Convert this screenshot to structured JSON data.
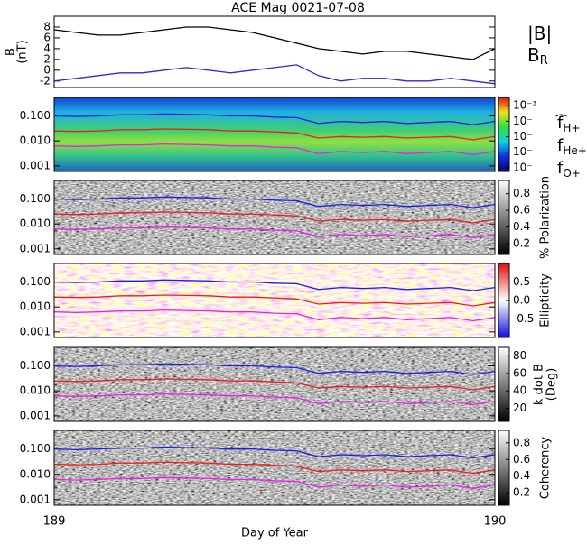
{
  "chart_data": [
    {
      "type": "line",
      "title": "ACE Mag 0021-07-08",
      "ylabel": [
        "B",
        "(nT)"
      ],
      "x": [
        189,
        189.05,
        189.1,
        189.15,
        189.2,
        189.25,
        189.3,
        189.35,
        189.4,
        189.45,
        189.5,
        189.55,
        189.6,
        189.65,
        189.7,
        189.75,
        189.8,
        189.85,
        189.9,
        189.95,
        190
      ],
      "series": [
        {
          "name": "|B|",
          "color": "#000000",
          "values": [
            7.5,
            7,
            6.5,
            6.5,
            7,
            7.5,
            8,
            8,
            7.5,
            7,
            6,
            5,
            4,
            3.5,
            3,
            3.5,
            3.5,
            3,
            2.5,
            2,
            4
          ]
        },
        {
          "name": "B_R",
          "color": "#2a2ad8",
          "values": [
            -2,
            -1.5,
            -1,
            -0.5,
            -0.5,
            0,
            0.5,
            0,
            -0.5,
            0,
            0.5,
            1,
            -1,
            -2,
            -1.5,
            -1.5,
            -2,
            -2,
            -1.5,
            -2,
            -2.5
          ]
        }
      ],
      "ylim": [
        -3.2,
        10
      ],
      "yticks": [
        -2,
        0,
        2,
        4,
        6,
        8
      ]
    },
    {
      "type": "spectrogram",
      "colormap": "rainbow",
      "log_scale": true,
      "x": [
        189,
        189.05,
        189.1,
        189.15,
        189.2,
        189.25,
        189.3,
        189.35,
        189.4,
        189.45,
        189.5,
        189.55,
        189.6,
        189.65,
        189.7,
        189.75,
        189.8,
        189.85,
        189.9,
        189.95,
        190
      ],
      "series": [
        {
          "name": "f_H+",
          "color": "#1c1cf0",
          "values": [
            0.1,
            0.095,
            0.1,
            0.11,
            0.11,
            0.12,
            0.115,
            0.11,
            0.1,
            0.1,
            0.09,
            0.085,
            0.05,
            0.06,
            0.055,
            0.06,
            0.05,
            0.055,
            0.06,
            0.045,
            0.06
          ]
        },
        {
          "name": "f_He+",
          "color": "#f01c1c",
          "values": [
            0.025,
            0.024,
            0.025,
            0.028,
            0.028,
            0.03,
            0.029,
            0.028,
            0.025,
            0.025,
            0.023,
            0.021,
            0.013,
            0.015,
            0.014,
            0.015,
            0.013,
            0.014,
            0.015,
            0.011,
            0.015
          ]
        },
        {
          "name": "f_O+",
          "color": "#f01cf0",
          "values": [
            0.0063,
            0.006,
            0.0063,
            0.0069,
            0.0069,
            0.0075,
            0.0072,
            0.0069,
            0.0063,
            0.0063,
            0.0056,
            0.0053,
            0.0031,
            0.0038,
            0.0034,
            0.0038,
            0.0031,
            0.0034,
            0.0038,
            0.0028,
            0.0038
          ]
        }
      ],
      "ylim": [
        0.0006,
        0.55
      ],
      "yticks": [
        {
          "value": 0.001,
          "label": "0.001"
        },
        {
          "value": 0.01,
          "label": "0.010"
        },
        {
          "value": 0.1,
          "label": "0.100"
        }
      ],
      "clog": true,
      "clim": [
        5.8e-08,
        0.0034
      ],
      "cticks": [
        {
          "value": 0.001,
          "label": "10⁻³"
        },
        {
          "value": 0.0001,
          "label": "10⁻"
        },
        {
          "value": 1e-05,
          "label": "10⁻"
        },
        {
          "value": 1e-06,
          "label": "10⁻"
        },
        {
          "value": 1e-07,
          "label": "10⁻"
        }
      ],
      "cbar_label": ")"
    },
    {
      "type": "spectrogram",
      "colormap": "gray",
      "log_scale": true,
      "ylim": [
        0.0006,
        0.55
      ],
      "yticks": [
        {
          "value": 0.001,
          "label": "0.001"
        },
        {
          "value": 0.01,
          "label": "0.010"
        },
        {
          "value": 0.1,
          "label": "0.100"
        }
      ],
      "clim": [
        0.07,
        0.96
      ],
      "cticks": [
        0.2,
        0.4,
        0.6,
        0.8
      ],
      "cbar_label": "% Polarization"
    },
    {
      "type": "spectrogram",
      "colormap": "bwr",
      "log_scale": true,
      "ylim": [
        0.0006,
        0.55
      ],
      "yticks": [
        {
          "value": 0.001,
          "label": "0.001"
        },
        {
          "value": 0.01,
          "label": "0.010"
        },
        {
          "value": 0.1,
          "label": "0.100"
        }
      ],
      "clim": [
        -1,
        1
      ],
      "cticks": [
        -0.5,
        {
          "value": 0,
          "label": "0.0"
        },
        0.5
      ],
      "cbar_label": "Ellipticity"
    },
    {
      "type": "spectrogram",
      "colormap": "gray",
      "log_scale": true,
      "ylim": [
        0.0006,
        0.55
      ],
      "yticks": [
        {
          "value": 0.001,
          "label": "0.001"
        },
        {
          "value": 0.01,
          "label": "0.010"
        },
        {
          "value": 0.1,
          "label": "0.100"
        }
      ],
      "clim": [
        5,
        90
      ],
      "cticks": [
        20,
        40,
        60,
        80
      ],
      "cbar_label": [
        "k dot B",
        "(Deg)"
      ]
    },
    {
      "type": "spectrogram",
      "colormap": "gray",
      "log_scale": true,
      "ylim": [
        0.0006,
        0.55
      ],
      "yticks": [
        {
          "value": 0.001,
          "label": "0.001"
        },
        {
          "value": 0.01,
          "label": "0.010"
        },
        {
          "value": 0.1,
          "label": "0.100"
        }
      ],
      "clim": [
        0.05,
        0.95
      ],
      "cticks": [
        0.2,
        0.4,
        0.6,
        0.8
      ],
      "cbar_label": "Coherency",
      "xlim": [
        189,
        190
      ],
      "xticks": [
        189,
        190
      ],
      "xlabel": "Day of Year"
    }
  ]
}
